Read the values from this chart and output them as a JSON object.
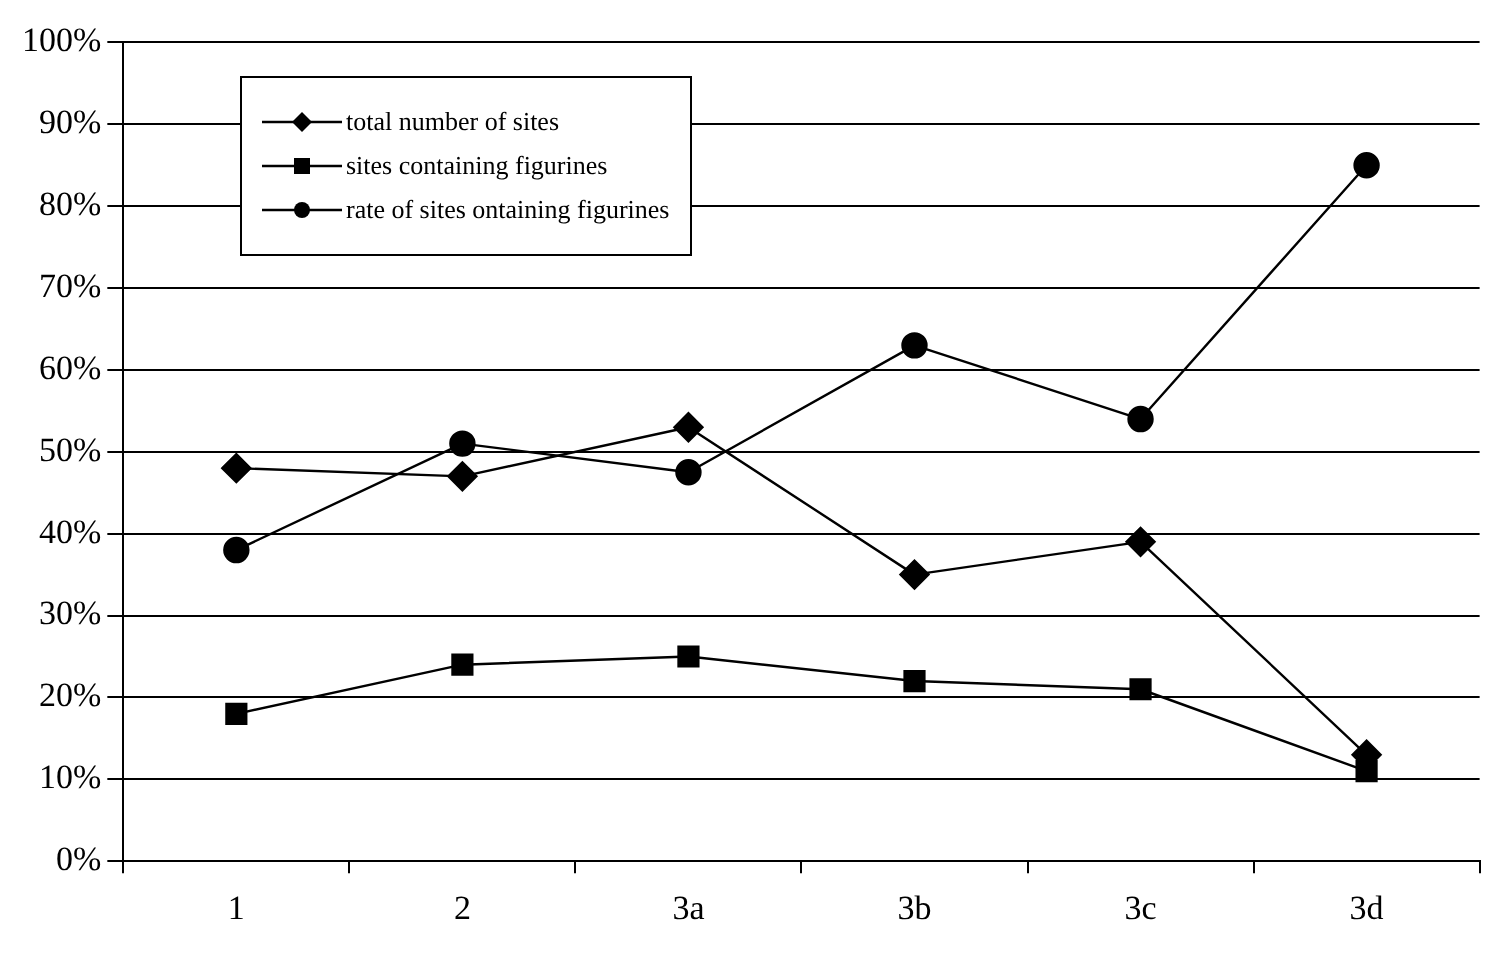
{
  "chart_data": {
    "type": "line",
    "categories": [
      "1",
      "2",
      "3a",
      "3b",
      "3c",
      "3d"
    ],
    "series": [
      {
        "name": "total number of sites",
        "color": "#000000",
        "marker": "diamond",
        "values": [
          48,
          47,
          53,
          35,
          39,
          13
        ]
      },
      {
        "name": "sites containing figurines",
        "color": "#000000",
        "marker": "square",
        "values": [
          18,
          24,
          25,
          22,
          21,
          11
        ]
      },
      {
        "name": "rate of sites ontaining figurines",
        "color": "#000000",
        "marker": "circle",
        "values": [
          38,
          51,
          47.5,
          63,
          54,
          85
        ]
      }
    ],
    "ylim": [
      0,
      100
    ],
    "yticks": [
      {
        "value": 0,
        "label": "0%"
      },
      {
        "value": 10,
        "label": "10%"
      },
      {
        "value": 20,
        "label": "20%"
      },
      {
        "value": 30,
        "label": "30%"
      },
      {
        "value": 40,
        "label": "40%"
      },
      {
        "value": 50,
        "label": "50%"
      },
      {
        "value": 60,
        "label": "60%"
      },
      {
        "value": 70,
        "label": "70%"
      },
      {
        "value": 80,
        "label": "80%"
      },
      {
        "value": 90,
        "label": "90%"
      },
      {
        "value": 100,
        "label": "100%"
      }
    ],
    "grid": "y",
    "legend": "top left",
    "line_style": "solid"
  }
}
